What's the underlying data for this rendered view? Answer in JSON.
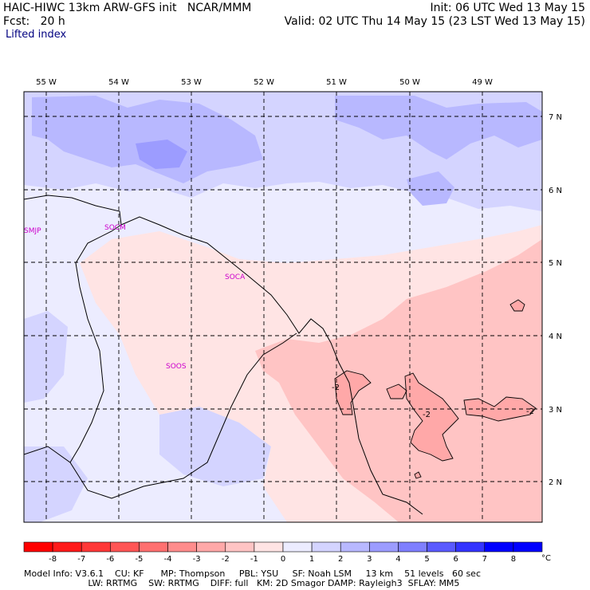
{
  "header": {
    "line1_left": "HAIC-HIWC 13km ARW-GFS init   NCAR/MMM",
    "line1_right": "Init: 06 UTC Wed 13 May 15",
    "line2_left": "Fcst:   20 h",
    "line2_right": "Valid: 02 UTC Thu 14 May 15 (23 LST Wed 13 May 15)",
    "field_name": "Lifted index"
  },
  "map": {
    "lon_labels": [
      "55 W",
      "54 W",
      "53 W",
      "52 W",
      "51 W",
      "50 W",
      "49 W"
    ],
    "lat_labels": [
      "7 N",
      "6 N",
      "5 N",
      "4 N",
      "3 N",
      "2 N"
    ],
    "stations": [
      {
        "id": "smjp",
        "label": "SMJP"
      },
      {
        "id": "socm",
        "label": "SOCM"
      },
      {
        "id": "soca",
        "label": "SOCA"
      },
      {
        "id": "soos",
        "label": "SOOS"
      }
    ],
    "contour_labels": [
      "-2",
      "-2",
      "-2"
    ],
    "colors": {
      "station": "#cc00cc",
      "coast": "#000000",
      "grid": "#000000"
    }
  },
  "colorbar": {
    "ticks": [
      "-8",
      "-7",
      "-6",
      "-5",
      "-4",
      "-3",
      "-2",
      "-1",
      "0",
      "1",
      "2",
      "3",
      "4",
      "5",
      "6",
      "7",
      "8"
    ],
    "unit": "°C",
    "colors": [
      "#ff0000",
      "#ff1a1a",
      "#ff3838",
      "#ff5555",
      "#ff7070",
      "#ff8c8c",
      "#ffa8a8",
      "#ffc4c4",
      "#ffe4e4",
      "#ececff",
      "#d4d4ff",
      "#b8b8ff",
      "#9c9cff",
      "#7f7fff",
      "#5a5aff",
      "#3434ff",
      "#0000ff"
    ]
  },
  "footer": {
    "line1": "Model Info: V3.6.1    CU: KF      MP: Thompson     PBL: YSU     SF: Noah LSM     13 km    51 levels   60 sec",
    "line2": "                       LW: RRTMG    SW: RRTMG    DIFF: full   KM: 2D Smagor DAMP: Rayleigh3  SFLAY: MM5"
  }
}
